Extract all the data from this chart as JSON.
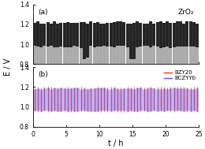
{
  "title_a": "(a)",
  "title_b": "(b)",
  "label_zro2": "ZrO₂",
  "label_bzy20": "BZY20",
  "label_bczyyyb": "BCZYYb",
  "xlabel": "t / h",
  "ylabel": "E / V",
  "xlim": [
    0,
    25
  ],
  "ylim_a": [
    0.8,
    1.4
  ],
  "ylim_b": [
    0.8,
    1.4
  ],
  "yticks": [
    0.8,
    1.0,
    1.2,
    1.4
  ],
  "xticks": [
    0,
    5,
    10,
    15,
    20,
    25
  ],
  "num_cycles": 50,
  "zro2_high_mean": 1.22,
  "zro2_high_std": 0.015,
  "zro2_low_mean": 0.975,
  "zro2_low_std": 0.012,
  "zro2_spike_indices": [
    15,
    16,
    29,
    30
  ],
  "zro2_spike_low": 0.855,
  "bzy20_high_mean": 1.195,
  "bzy20_high_std": 0.01,
  "bzy20_low_mean": 0.955,
  "bzy20_low_std": 0.008,
  "bczyyyb_high_mean": 1.185,
  "bczyyyb_high_std": 0.01,
  "bczyyyb_low_mean": 0.96,
  "bczyyyb_low_std": 0.008,
  "color_zro2_dark": "#222222",
  "color_zro2_light": "#aaaaaa",
  "color_bzy20": "#FF3333",
  "color_bczyyyb": "#5555FF",
  "color_bczyyyb_fill": "#aaaaff"
}
